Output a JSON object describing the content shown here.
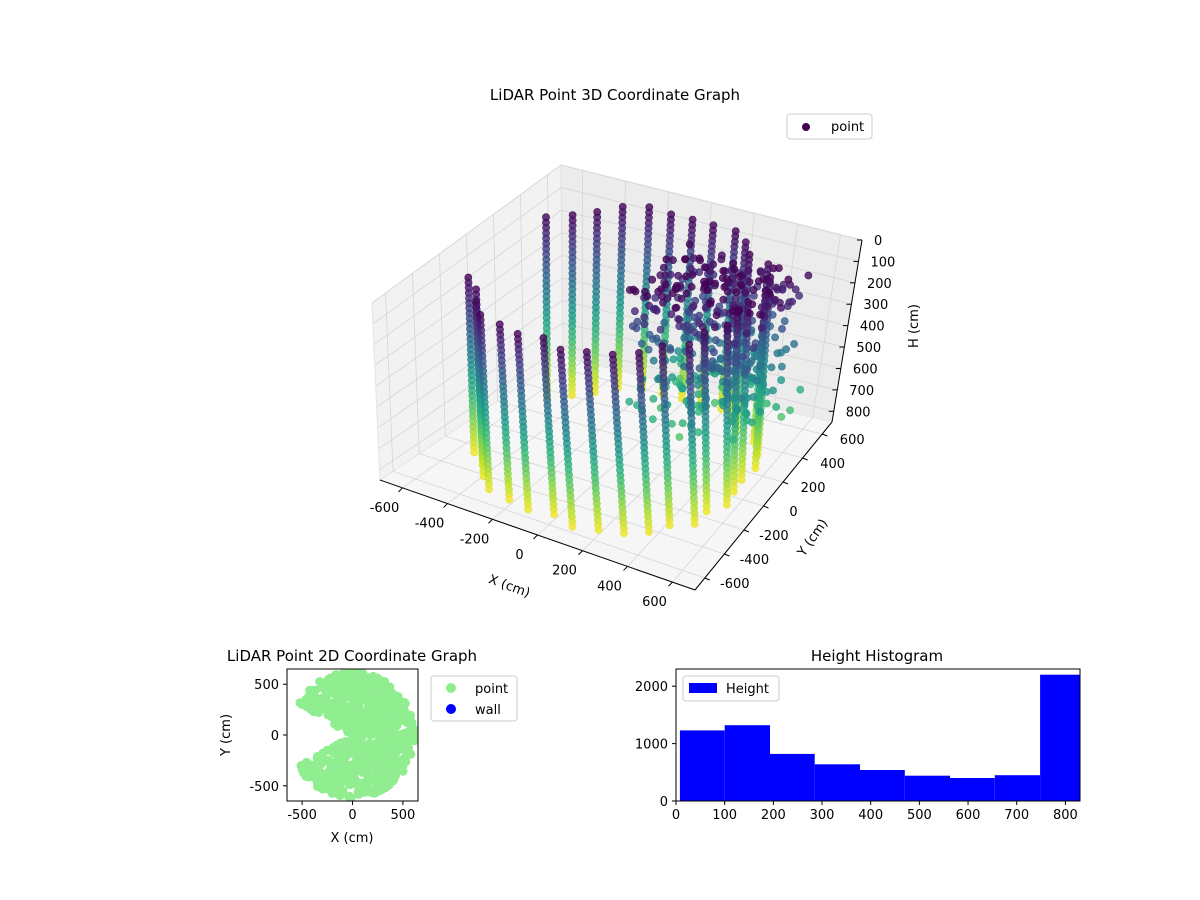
{
  "chart_data": [
    {
      "type": "scatter",
      "projection": "3d",
      "title": "LiDAR Point 3D Coordinate Graph",
      "xlabel": "X (cm)",
      "ylabel": "Y (cm)",
      "zlabel": "H (cm)",
      "xlim": [
        -700,
        700
      ],
      "ylim": [
        -700,
        700
      ],
      "zlim": [
        850,
        0
      ],
      "zaxis_inverted": true,
      "xticks": [
        "-600",
        "-400",
        "-200",
        "0",
        "200",
        "400",
        "600"
      ],
      "yticks": [
        "-600",
        "-400",
        "-200",
        "0",
        "200",
        "400",
        "600"
      ],
      "zticks": [
        "0",
        "100",
        "200",
        "300",
        "400",
        "500",
        "600",
        "700",
        "800"
      ],
      "colormap": "viridis",
      "color_by": "height",
      "grid": true,
      "legend": {
        "position": "top-right",
        "entries": [
          {
            "label": "point",
            "color": "#440154"
          }
        ]
      },
      "series": [
        {
          "name": "point",
          "description": "cylindrical wall of LiDAR points around the sensor plus a scattered cluster toward +X",
          "wall_radius_approx": 600,
          "wall_angle_range_deg": [
            -150,
            150
          ],
          "height_range": [
            0,
            830
          ]
        }
      ]
    },
    {
      "type": "scatter",
      "title": "LiDAR Point 2D Coordinate Graph",
      "xlabel": "X (cm)",
      "ylabel": "Y (cm)",
      "xlim": [
        -650,
        650
      ],
      "ylim": [
        -650,
        650
      ],
      "xticks": [
        "-500",
        "0",
        "500"
      ],
      "yticks": [
        "-500",
        "0",
        "500"
      ],
      "grid": false,
      "legend": {
        "position": "outside-right",
        "entries": [
          {
            "label": "point",
            "color": "#90ee90"
          },
          {
            "label": "wall",
            "color": "#0000ff"
          }
        ]
      },
      "series": [
        {
          "name": "point",
          "color": "#90ee90",
          "description": "dense fan of points spanning x from about -600 to 600, y from about -620 to 620"
        },
        {
          "name": "wall",
          "color": "#0000ff",
          "values": []
        }
      ]
    },
    {
      "type": "histogram",
      "title": "Height Histogram",
      "xlabel": "",
      "ylabel": "",
      "xlim": [
        0,
        830
      ],
      "ylim": [
        0,
        2300
      ],
      "xticks": [
        "0",
        "100",
        "200",
        "300",
        "400",
        "500",
        "600",
        "700",
        "800"
      ],
      "yticks": [
        "0",
        "1000",
        "2000"
      ],
      "legend": {
        "position": "top-left",
        "entries": [
          {
            "label": "Height",
            "color": "#0000ff"
          }
        ]
      },
      "series": [
        {
          "name": "Height",
          "color": "#0000ff",
          "bin_edges": [
            8,
            100,
            193,
            285,
            378,
            470,
            563,
            655,
            748,
            830
          ],
          "counts": [
            1230,
            1320,
            820,
            640,
            540,
            440,
            400,
            450,
            2200
          ]
        }
      ]
    }
  ]
}
